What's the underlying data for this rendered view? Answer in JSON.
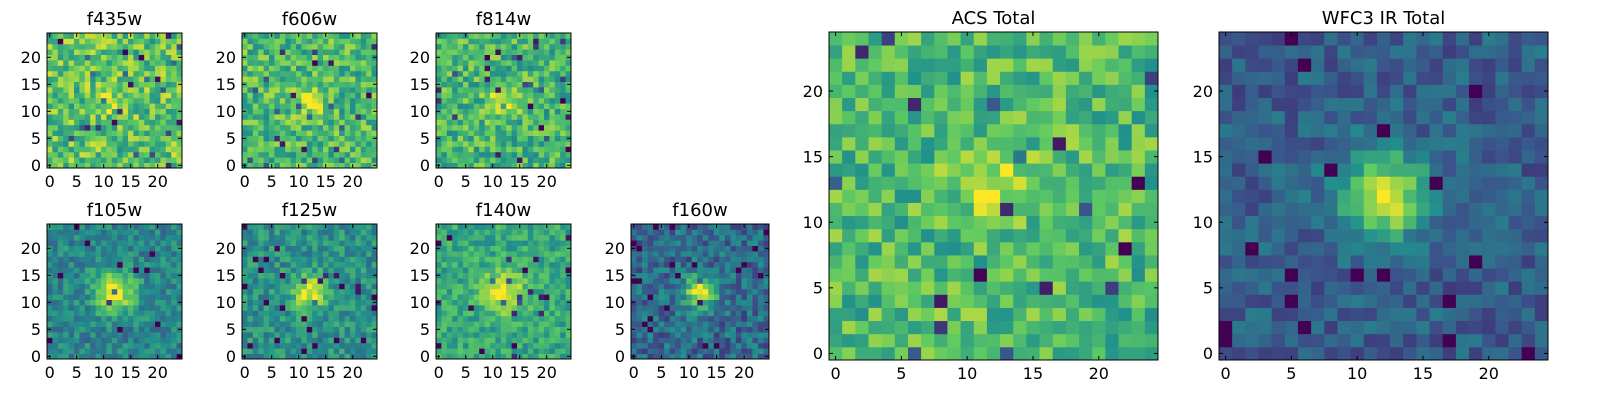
{
  "figure": {
    "background": "#ffffff",
    "colormap": "viridis",
    "colormap_stops": [
      "#440154",
      "#3b528b",
      "#21918c",
      "#5ec962",
      "#fde725"
    ]
  },
  "chart_data": [
    {
      "type": "heatmap",
      "title": "f435w",
      "grid": [
        25,
        25
      ],
      "xlim": [
        -0.5,
        24.5
      ],
      "ylim": [
        -0.5,
        24.5
      ],
      "xticks": [
        0,
        5,
        10,
        15,
        20
      ],
      "yticks": [
        0,
        5,
        10,
        15,
        20
      ],
      "xlabel": "",
      "ylabel": "",
      "pattern": {
        "seed": 11,
        "peak_x": 12,
        "peak_y": 12,
        "peak_value": 0.12,
        "peak_width": 2.5,
        "background_value": 0.72,
        "noise": 0.22
      }
    },
    {
      "type": "heatmap",
      "title": "f606w",
      "grid": [
        25,
        25
      ],
      "xlim": [
        -0.5,
        24.5
      ],
      "ylim": [
        -0.5,
        24.5
      ],
      "xticks": [
        0,
        5,
        10,
        15,
        20
      ],
      "yticks": [
        0,
        5,
        10,
        15,
        20
      ],
      "xlabel": "",
      "ylabel": "",
      "pattern": {
        "seed": 23,
        "peak_x": 12,
        "peak_y": 12,
        "peak_value": 0.25,
        "peak_width": 2.0,
        "background_value": 0.68,
        "noise": 0.2
      }
    },
    {
      "type": "heatmap",
      "title": "f814w",
      "grid": [
        25,
        25
      ],
      "xlim": [
        -0.5,
        24.5
      ],
      "ylim": [
        -0.5,
        24.5
      ],
      "xticks": [
        0,
        5,
        10,
        15,
        20
      ],
      "yticks": [
        0,
        5,
        10,
        15,
        20
      ],
      "xlabel": "",
      "ylabel": "",
      "pattern": {
        "seed": 37,
        "peak_x": 12,
        "peak_y": 12,
        "peak_value": 0.3,
        "peak_width": 2.0,
        "background_value": 0.66,
        "noise": 0.2
      }
    },
    {
      "type": "heatmap",
      "title": "f105w",
      "grid": [
        25,
        25
      ],
      "xlim": [
        -0.5,
        24.5
      ],
      "ylim": [
        -0.5,
        24.5
      ],
      "xticks": [
        0,
        5,
        10,
        15,
        20
      ],
      "yticks": [
        0,
        5,
        10,
        15,
        20
      ],
      "xlabel": "",
      "ylabel": "",
      "pattern": {
        "seed": 41,
        "peak_x": 12,
        "peak_y": 12,
        "peak_value": 0.55,
        "peak_width": 2.6,
        "background_value": 0.45,
        "noise": 0.14
      }
    },
    {
      "type": "heatmap",
      "title": "f125w",
      "grid": [
        25,
        25
      ],
      "xlim": [
        -0.5,
        24.5
      ],
      "ylim": [
        -0.5,
        24.5
      ],
      "xticks": [
        0,
        5,
        10,
        15,
        20
      ],
      "yticks": [
        0,
        5,
        10,
        15,
        20
      ],
      "xlabel": "",
      "ylabel": "",
      "pattern": {
        "seed": 53,
        "peak_x": 12,
        "peak_y": 12,
        "peak_value": 0.5,
        "peak_width": 2.2,
        "background_value": 0.5,
        "noise": 0.15
      }
    },
    {
      "type": "heatmap",
      "title": "f140w",
      "grid": [
        25,
        25
      ],
      "xlim": [
        -0.5,
        24.5
      ],
      "ylim": [
        -0.5,
        24.5
      ],
      "xticks": [
        0,
        5,
        10,
        15,
        20
      ],
      "yticks": [
        0,
        5,
        10,
        15,
        20
      ],
      "xlabel": "",
      "ylabel": "",
      "pattern": {
        "seed": 67,
        "peak_x": 12,
        "peak_y": 12,
        "peak_value": 0.38,
        "peak_width": 2.8,
        "background_value": 0.6,
        "noise": 0.14
      }
    },
    {
      "type": "heatmap",
      "title": "f160w",
      "grid": [
        25,
        25
      ],
      "xlim": [
        -0.5,
        24.5
      ],
      "ylim": [
        -0.5,
        24.5
      ],
      "xticks": [
        0,
        5,
        10,
        15,
        20
      ],
      "yticks": [
        0,
        5,
        10,
        15,
        20
      ],
      "xlabel": "",
      "ylabel": "",
      "pattern": {
        "seed": 79,
        "peak_x": 12,
        "peak_y": 12,
        "peak_value": 0.65,
        "peak_width": 2.0,
        "background_value": 0.35,
        "noise": 0.17
      }
    },
    {
      "type": "heatmap",
      "title": "ACS Total",
      "grid": [
        25,
        25
      ],
      "xlim": [
        -0.5,
        24.5
      ],
      "ylim": [
        -0.5,
        24.5
      ],
      "xticks": [
        0,
        5,
        10,
        15,
        20
      ],
      "yticks": [
        0,
        5,
        10,
        15,
        20
      ],
      "xlabel": "",
      "ylabel": "",
      "pattern": {
        "seed": 97,
        "peak_x": 12,
        "peak_y": 13,
        "peak_value": 0.28,
        "peak_width": 2.0,
        "background_value": 0.68,
        "noise": 0.19
      }
    },
    {
      "type": "heatmap",
      "title": "WFC3 IR Total",
      "grid": [
        25,
        25
      ],
      "xlim": [
        -0.5,
        24.5
      ],
      "ylim": [
        -0.5,
        24.5
      ],
      "xticks": [
        0,
        5,
        10,
        15,
        20
      ],
      "yticks": [
        0,
        5,
        10,
        15,
        20
      ],
      "xlabel": "",
      "ylabel": "",
      "pattern": {
        "seed": 131,
        "peak_x": 12,
        "peak_y": 12,
        "peak_value": 0.68,
        "peak_width": 2.3,
        "background_value": 0.3,
        "noise": 0.12
      }
    }
  ]
}
